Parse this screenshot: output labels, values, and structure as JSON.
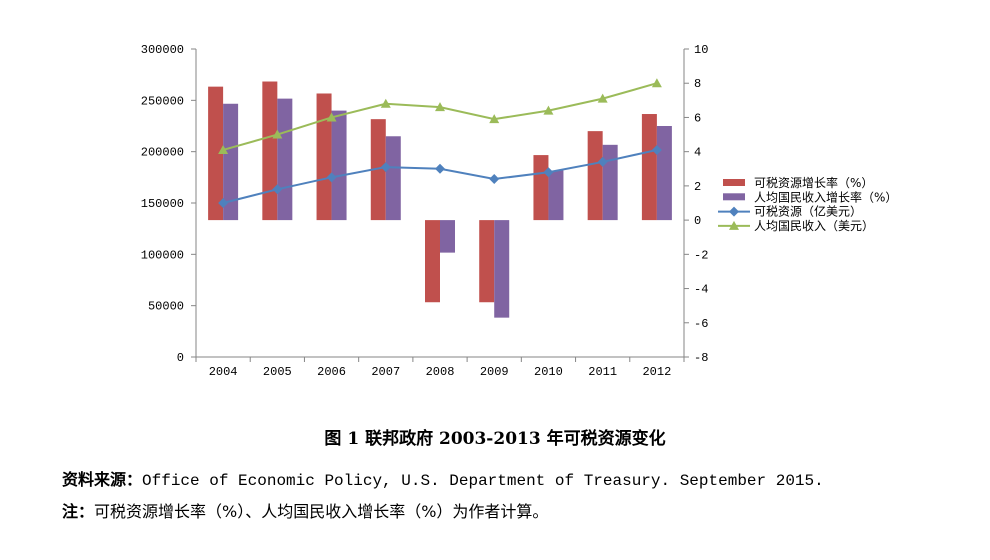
{
  "chart_data": {
    "type": "bar+line",
    "categories": [
      "2004",
      "2005",
      "2006",
      "2007",
      "2008",
      "2009",
      "2010",
      "2011",
      "2012"
    ],
    "left_axis": {
      "ticks": [
        "0",
        "50000",
        "100000",
        "150000",
        "200000",
        "250000",
        "300000"
      ],
      "ylim": [
        0,
        300000
      ]
    },
    "right_axis": {
      "ticks": [
        "10",
        "8",
        "6",
        "4",
        "2",
        "0",
        "-2",
        "-4",
        "-6",
        "-8"
      ],
      "ylim": [
        -8,
        10
      ]
    },
    "series": [
      {
        "name": "可税资源增长率（%）",
        "type": "bar",
        "axis": "right",
        "color": "#c0504d",
        "values": [
          7.8,
          8.1,
          7.4,
          5.9,
          -4.8,
          -4.8,
          3.8,
          5.2,
          6.2
        ]
      },
      {
        "name": "人均国民收入增长率（%）",
        "type": "bar",
        "axis": "right",
        "color": "#8064a2",
        "values": [
          6.8,
          7.1,
          6.4,
          4.9,
          -1.9,
          -5.7,
          2.9,
          4.4,
          5.5
        ]
      },
      {
        "name": "可税资源（亿美元）",
        "type": "line",
        "axis": "right",
        "color": "#4f81bd",
        "marker": "diamond",
        "values": [
          1.0,
          1.8,
          2.5,
          3.1,
          3.0,
          2.4,
          2.8,
          3.4,
          4.1
        ]
      },
      {
        "name": "人均国民收入（美元）",
        "type": "line",
        "axis": "right",
        "color": "#9bbb59",
        "marker": "triangle",
        "values": [
          4.1,
          5.0,
          6.0,
          6.8,
          6.6,
          5.9,
          6.4,
          7.1,
          8.0
        ]
      }
    ],
    "legend_position": "right"
  },
  "caption": {
    "title": "图 1  联邦政府 2003-2013 年可税资源变化",
    "source_label": "资料来源：",
    "source_text": "Office of Economic Policy, U.S. Department of Treasury. September 2015.",
    "note_label": "注：",
    "note_text": "可税资源增长率（%）、人均国民收入增长率（%）为作者计算。"
  }
}
